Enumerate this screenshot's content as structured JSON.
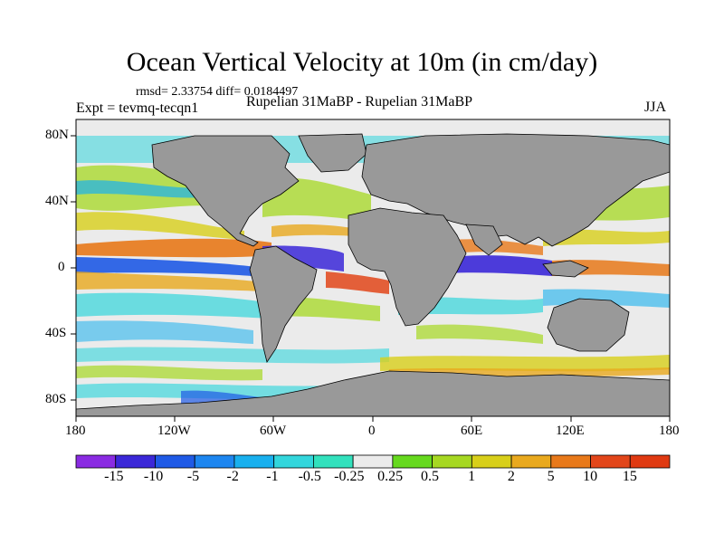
{
  "title": "Ocean Vertical Velocity at 10m (in cm/day)",
  "stats": "rmsd= 2.33754 diff= 0.0184497",
  "expt": "Expt = tevmq-tecqn1",
  "comparison": "Rupelian  31MaBP - Rupelian  31MaBP",
  "season": "JJA",
  "axes": {
    "x_ticks": [
      "180",
      "120W",
      "60W",
      "0",
      "60E",
      "120E",
      "180"
    ],
    "y_ticks": [
      "80N",
      "40N",
      "0",
      "40S",
      "80S"
    ]
  },
  "colorbar": {
    "labels": [
      "-15",
      "-10",
      "-5",
      "-2",
      "-1",
      "-0.5",
      "-0.25",
      "0.25",
      "0.5",
      "1",
      "2",
      "5",
      "10",
      "15"
    ],
    "colors": [
      "#8a2be2",
      "#3b28d8",
      "#1f5ae6",
      "#1d86f0",
      "#19b0ee",
      "#33d6dc",
      "#32e1bd",
      "#ebebeb",
      "#66d91e",
      "#a6d822",
      "#d8cf1a",
      "#e9a91e",
      "#e8791a",
      "#e2461a"
    ]
  },
  "map_colors": {
    "land": "#999999",
    "ocean_neutral": "#ebebeb"
  }
}
